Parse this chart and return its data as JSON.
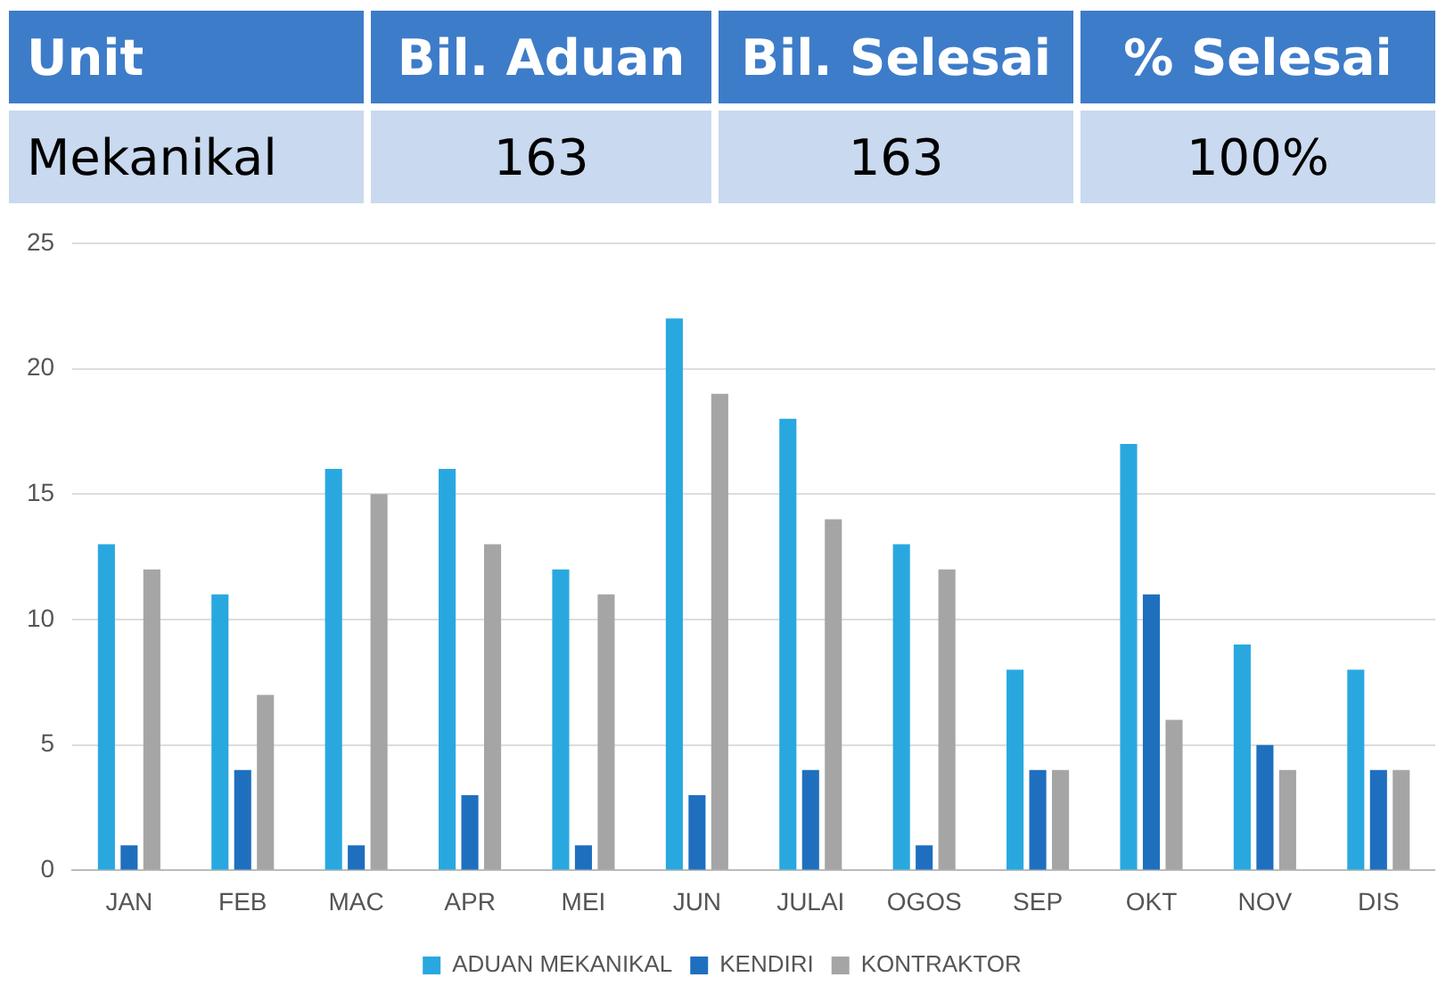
{
  "chart_data": [
    {
      "type": "other",
      "annotations": [
        "Unit",
        "Bil. Aduan",
        "Bil. Selesai",
        "% Selesai",
        "Mekanikal",
        "163",
        "163",
        "100%"
      ]
    },
    {
      "type": "bar",
      "categories": [
        "JAN",
        "FEB",
        "MAC",
        "APR",
        "MEI",
        "JUN",
        "JULAI",
        "OGOS",
        "SEP",
        "OKT",
        "NOV",
        "DIS"
      ],
      "series": [
        {
          "name": "ADUAN MEKANIKAL",
          "color": "#29a8e0",
          "values": [
            13,
            11,
            16,
            16,
            12,
            22,
            18,
            13,
            8,
            17,
            9,
            8
          ]
        },
        {
          "name": "KENDIRI",
          "color": "#1f6fbf",
          "values": [
            1,
            4,
            1,
            3,
            1,
            3,
            4,
            1,
            4,
            11,
            5,
            4
          ]
        },
        {
          "name": "KONTRAKTOR",
          "color": "#a5a5a5",
          "values": [
            12,
            7,
            15,
            13,
            11,
            19,
            14,
            12,
            4,
            6,
            4,
            4
          ]
        }
      ],
      "ylim": [
        0,
        25
      ],
      "yticks": [
        0,
        5,
        10,
        15,
        20,
        25
      ],
      "grid": "y",
      "legend": "bottom"
    }
  ]
}
